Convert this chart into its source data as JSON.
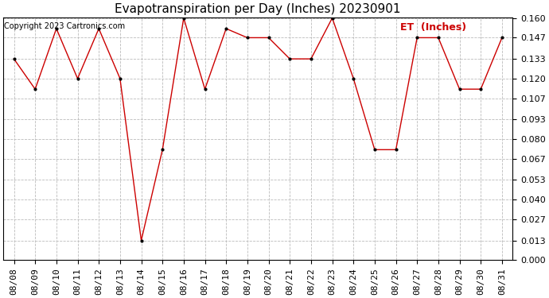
{
  "title": "Evapotranspiration per Day (Inches) 20230901",
  "copyright": "Copyright 2023 Cartronics.com",
  "legend_label": "ET  (Inches)",
  "x_labels": [
    "08/08",
    "08/09",
    "08/10",
    "08/11",
    "08/12",
    "08/13",
    "08/14",
    "08/15",
    "08/16",
    "08/17",
    "08/18",
    "08/19",
    "08/20",
    "08/21",
    "08/22",
    "08/23",
    "08/24",
    "08/25",
    "08/26",
    "08/27",
    "08/28",
    "08/29",
    "08/30",
    "08/31"
  ],
  "y_values": [
    0.133,
    0.113,
    0.153,
    0.12,
    0.153,
    0.12,
    0.013,
    0.073,
    0.16,
    0.113,
    0.153,
    0.147,
    0.147,
    0.133,
    0.133,
    0.16,
    0.12,
    0.073,
    0.073,
    0.147,
    0.147,
    0.113,
    0.113,
    0.147
  ],
  "y_ticks": [
    0.0,
    0.013,
    0.027,
    0.04,
    0.053,
    0.067,
    0.08,
    0.093,
    0.107,
    0.12,
    0.133,
    0.147,
    0.16
  ],
  "y_min": 0.0,
  "y_max": 0.16,
  "line_color": "#cc0000",
  "marker_color": "#000000",
  "background_color": "#ffffff",
  "grid_color": "#bbbbbb",
  "title_fontsize": 11,
  "copyright_fontsize": 7,
  "legend_fontsize": 9,
  "tick_fontsize": 8,
  "legend_color": "#cc0000"
}
